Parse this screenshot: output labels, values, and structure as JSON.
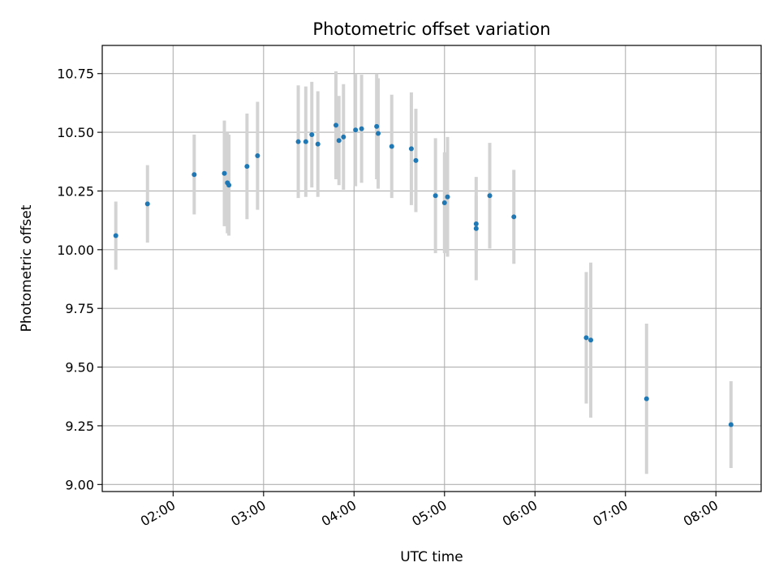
{
  "chart_data": {
    "type": "scatter",
    "title": "Photometric offset variation",
    "xlabel": "UTC time",
    "ylabel": "Photometric offset",
    "x_ticks": [
      "02:00",
      "03:00",
      "04:00",
      "05:00",
      "06:00",
      "07:00",
      "08:00"
    ],
    "y_ticks": [
      "9.00",
      "9.25",
      "9.50",
      "9.75",
      "10.00",
      "10.25",
      "10.50",
      "10.75"
    ],
    "xlim": [
      "01:13",
      "08:30"
    ],
    "ylim": [
      8.97,
      10.87
    ],
    "grid": true,
    "errorbar_color": "#d3d3d3",
    "point_color": "#1f77b4",
    "points": [
      {
        "x": "01:22",
        "y": 10.06,
        "yerr": 0.145
      },
      {
        "x": "01:43",
        "y": 10.195,
        "yerr": 0.165
      },
      {
        "x": "02:14",
        "y": 10.32,
        "yerr": 0.17
      },
      {
        "x": "02:34",
        "y": 10.325,
        "yerr": 0.225
      },
      {
        "x": "02:36",
        "y": 10.285,
        "yerr": 0.215
      },
      {
        "x": "02:37",
        "y": 10.275,
        "yerr": 0.215
      },
      {
        "x": "02:49",
        "y": 10.355,
        "yerr": 0.225
      },
      {
        "x": "02:56",
        "y": 10.4,
        "yerr": 0.23
      },
      {
        "x": "03:23",
        "y": 10.46,
        "yerr": 0.24
      },
      {
        "x": "03:28",
        "y": 10.46,
        "yerr": 0.235
      },
      {
        "x": "03:32",
        "y": 10.49,
        "yerr": 0.225
      },
      {
        "x": "03:36",
        "y": 10.45,
        "yerr": 0.225
      },
      {
        "x": "03:48",
        "y": 10.53,
        "yerr": 0.23
      },
      {
        "x": "03:50",
        "y": 10.465,
        "yerr": 0.19
      },
      {
        "x": "03:53",
        "y": 10.48,
        "yerr": 0.225
      },
      {
        "x": "04:01",
        "y": 10.51,
        "yerr": 0.24
      },
      {
        "x": "04:05",
        "y": 10.515,
        "yerr": 0.23
      },
      {
        "x": "04:15",
        "y": 10.525,
        "yerr": 0.225
      },
      {
        "x": "04:16",
        "y": 10.495,
        "yerr": 0.235
      },
      {
        "x": "04:25",
        "y": 10.44,
        "yerr": 0.22
      },
      {
        "x": "04:38",
        "y": 10.43,
        "yerr": 0.24
      },
      {
        "x": "04:41",
        "y": 10.38,
        "yerr": 0.22
      },
      {
        "x": "04:54",
        "y": 10.23,
        "yerr": 0.245
      },
      {
        "x": "05:00",
        "y": 10.2,
        "yerr": 0.215
      },
      {
        "x": "05:02",
        "y": 10.225,
        "yerr": 0.255
      },
      {
        "x": "05:21",
        "y": 10.09,
        "yerr": 0.22
      },
      {
        "x": "05:21",
        "y": 10.11,
        "yerr": 0.12
      },
      {
        "x": "05:30",
        "y": 10.23,
        "yerr": 0.225
      },
      {
        "x": "05:46",
        "y": 10.14,
        "yerr": 0.2
      },
      {
        "x": "06:34",
        "y": 9.625,
        "yerr": 0.28
      },
      {
        "x": "06:37",
        "y": 9.615,
        "yerr": 0.33
      },
      {
        "x": "07:14",
        "y": 9.365,
        "yerr": 0.32
      },
      {
        "x": "08:10",
        "y": 9.255,
        "yerr": 0.185
      }
    ]
  }
}
